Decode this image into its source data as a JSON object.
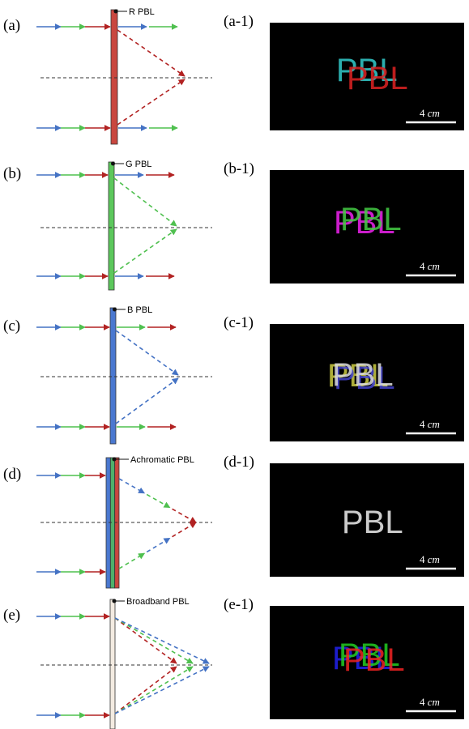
{
  "panels": [
    {
      "label": "(a)",
      "lens": "R PBL",
      "image_label": "(a-1)",
      "image_text": "PBL",
      "scale_number": "4",
      "scale_unit": "cm"
    },
    {
      "label": "(b)",
      "lens": "G PBL",
      "image_label": "(b-1)",
      "image_text": "PBL",
      "scale_number": "4",
      "scale_unit": "cm"
    },
    {
      "label": "(c)",
      "lens": "B PBL",
      "image_label": "(c-1)",
      "image_text": "PBL",
      "scale_number": "4",
      "scale_unit": "cm"
    },
    {
      "label": "(d)",
      "lens": "Achromatic PBL",
      "image_label": "(d-1)",
      "image_text": "PBL",
      "scale_number": "4",
      "scale_unit": "cm"
    },
    {
      "label": "(e)",
      "lens": "Broadband PBL",
      "image_label": "(e-1)",
      "image_text": "PBL",
      "scale_number": "4",
      "scale_unit": "cm"
    }
  ]
}
